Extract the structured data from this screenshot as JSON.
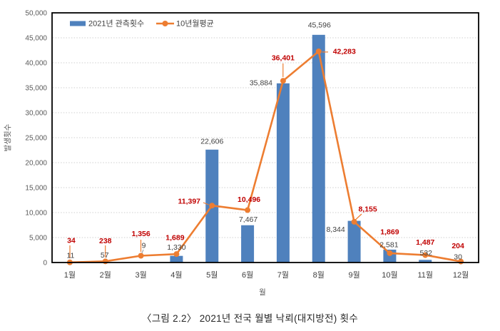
{
  "figure": {
    "caption": "〈그림 2.2〉 2021년 전국 월별 낙뢰(대지방전) 횟수"
  },
  "chart_data": {
    "type": "bar",
    "title": "",
    "categories": [
      "1월",
      "2월",
      "3월",
      "4월",
      "5월",
      "6월",
      "7월",
      "8월",
      "9월",
      "10월",
      "11월",
      "12월"
    ],
    "series": [
      {
        "name": "2021년 관측횟수",
        "type": "bar",
        "color": "#4F81BD",
        "label_color": "#404040",
        "values": [
          11,
          57,
          9,
          1330,
          22606,
          7467,
          35884,
          45596,
          8344,
          2581,
          532,
          30
        ]
      },
      {
        "name": "10년월평균",
        "type": "line",
        "color": "#ED7D31",
        "label_color": "#C00000",
        "values": [
          34,
          238,
          1356,
          1689,
          11397,
          10496,
          36401,
          42283,
          8155,
          1869,
          1487,
          204
        ]
      }
    ],
    "xlabel": "월",
    "ylabel": "발생횟수",
    "ylim": [
      0,
      50000
    ],
    "ytick_step": 5000,
    "grid": true,
    "legend_position": "top-inside",
    "axis_text_color": "#595959",
    "grid_color": "#CFCFCF",
    "border_color": "#000000"
  }
}
